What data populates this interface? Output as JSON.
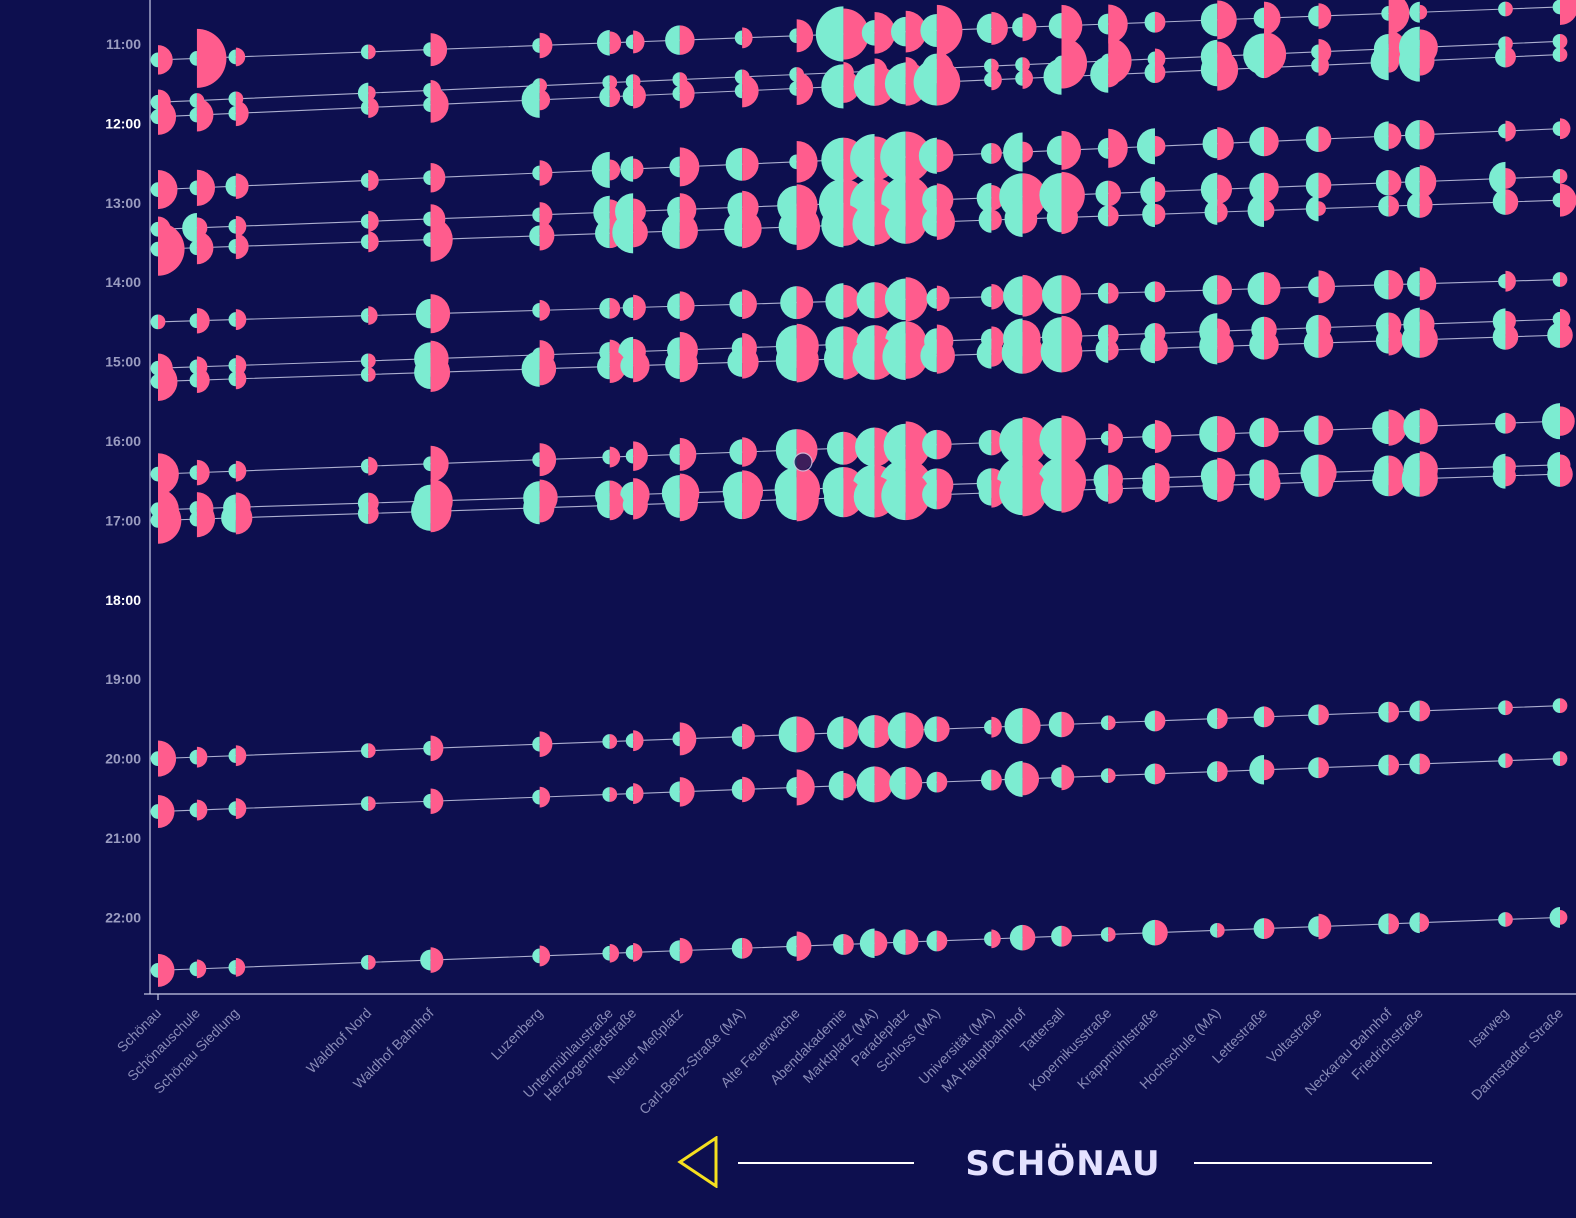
{
  "colors": {
    "background": "#0d0f4f",
    "boarding": "#ff5c8d",
    "alighting": "#7cecd1",
    "line": "#c9cbe6",
    "arrow": "#f5df1f"
  },
  "direction": {
    "destination": "SCHÖNAU",
    "arrow_icon": "triangle-left-icon"
  },
  "chart_data": {
    "type": "scatter",
    "title": "",
    "xlabel": "",
    "ylabel": "",
    "y_axis": {
      "type": "time",
      "ticks": [
        "11:00",
        "12:00",
        "13:00",
        "14:00",
        "15:00",
        "16:00",
        "17:00",
        "18:00",
        "19:00",
        "20:00",
        "21:00",
        "22:00"
      ],
      "major_ticks": [
        "12:00",
        "18:00"
      ],
      "range": [
        "10:30",
        "23:00"
      ]
    },
    "x_axis": {
      "type": "category",
      "stops": [
        {
          "name": "Schönau",
          "km": 0
        },
        {
          "name": "Schönauschule",
          "km": 0.5
        },
        {
          "name": "Schönau Siedlung",
          "km": 1.0
        },
        {
          "name": "Waldhof Nord",
          "km": 2.7
        },
        {
          "name": "Waldhof Bahnhof",
          "km": 3.5
        },
        {
          "name": "Luzenberg",
          "km": 4.9
        },
        {
          "name": "Untermühlaustraße",
          "km": 5.8
        },
        {
          "name": "Herzogenriedstraße",
          "km": 6.1
        },
        {
          "name": "Neuer Meßplatz",
          "km": 6.7
        },
        {
          "name": "Carl-Benz-Straße (MA)",
          "km": 7.5
        },
        {
          "name": "Alte Feuerwache",
          "km": 8.2
        },
        {
          "name": "Abendakademie",
          "km": 8.8
        },
        {
          "name": "Marktplatz (MA)",
          "km": 9.2
        },
        {
          "name": "Paradeplatz",
          "km": 9.6
        },
        {
          "name": "Schloss (MA)",
          "km": 10.0
        },
        {
          "name": "Universität (MA)",
          "km": 10.7
        },
        {
          "name": "MA Hauptbahnhof",
          "km": 11.1
        },
        {
          "name": "Tattersall",
          "km": 11.6
        },
        {
          "name": "Kopernikusstraße",
          "km": 12.2
        },
        {
          "name": "Krappmühlstraße",
          "km": 12.8
        },
        {
          "name": "Hochschule (MA)",
          "km": 13.6
        },
        {
          "name": "Lettestraße",
          "km": 14.2
        },
        {
          "name": "Voltastraße",
          "km": 14.9
        },
        {
          "name": "Neckarau Bahnhof",
          "km": 15.8
        },
        {
          "name": "Friedrichstraße",
          "km": 16.2
        },
        {
          "name": "Isarweg",
          "km": 17.3
        },
        {
          "name": "Darmstadter Straße",
          "km": 18.0
        }
      ]
    },
    "legend": "none",
    "series_note": "Each trip runs toward Schönau; each stop shows passengers boarding and alighting as half-circles sized by count.",
    "trips": [
      {
        "start": "11:12",
        "end": "10:32",
        "boarding": [
          20,
          80,
          8,
          5,
          25,
          15,
          12,
          12,
          20,
          10,
          25,
          60,
          40,
          40,
          60,
          25,
          18,
          40,
          35,
          10,
          35,
          25,
          15,
          40,
          5,
          5,
          30
        ],
        "alighting": [
          5,
          5,
          5,
          5,
          5,
          5,
          15,
          5,
          20,
          5,
          5,
          70,
          15,
          20,
          25,
          20,
          10,
          15,
          10,
          10,
          25,
          10,
          10,
          5,
          10,
          5,
          5
        ]
      },
      {
        "start": "11:44",
        "end": "10:58",
        "boarding": [
          15,
          5,
          5,
          5,
          10,
          5,
          5,
          5,
          5,
          5,
          5,
          10,
          15,
          15,
          25,
          5,
          5,
          60,
          50,
          10,
          20,
          45,
          15,
          30,
          30,
          5,
          5
        ],
        "alighting": [
          5,
          5,
          5,
          10,
          5,
          5,
          5,
          5,
          5,
          5,
          5,
          5,
          5,
          5,
          20,
          5,
          5,
          5,
          5,
          5,
          25,
          40,
          5,
          20,
          40,
          5,
          5
        ]
      },
      {
        "start": "11:55",
        "end": "11:08",
        "boarding": [
          30,
          25,
          15,
          10,
          30,
          10,
          10,
          15,
          20,
          25,
          25,
          25,
          40,
          45,
          50,
          10,
          10,
          10,
          15,
          10,
          40,
          10,
          10,
          10,
          20,
          10,
          5
        ],
        "alighting": [
          5,
          5,
          5,
          5,
          5,
          30,
          10,
          10,
          5,
          5,
          5,
          45,
          40,
          40,
          50,
          5,
          5,
          30,
          30,
          10,
          25,
          10,
          5,
          30,
          40,
          10,
          5
        ]
      },
      {
        "start": "12:50",
        "end": "12:04",
        "boarding": [
          35,
          30,
          15,
          10,
          20,
          15,
          10,
          10,
          35,
          25,
          40,
          45,
          45,
          60,
          25,
          10,
          10,
          35,
          35,
          10,
          25,
          20,
          15,
          15,
          20,
          10,
          10
        ],
        "alighting": [
          5,
          5,
          10,
          5,
          5,
          5,
          30,
          15,
          10,
          25,
          5,
          45,
          55,
          60,
          30,
          10,
          35,
          20,
          10,
          30,
          20,
          20,
          15,
          20,
          20,
          5,
          5
        ]
      },
      {
        "start": "13:20",
        "end": "12:40",
        "boarding": [
          15,
          10,
          10,
          10,
          20,
          15,
          15,
          15,
          25,
          25,
          40,
          55,
          55,
          60,
          25,
          15,
          50,
          50,
          15,
          10,
          20,
          20,
          15,
          15,
          25,
          10,
          5
        ],
        "alighting": [
          5,
          20,
          5,
          5,
          5,
          5,
          25,
          30,
          15,
          20,
          35,
          55,
          55,
          55,
          20,
          20,
          50,
          45,
          15,
          20,
          25,
          20,
          15,
          15,
          20,
          25,
          5
        ]
      },
      {
        "start": "13:35",
        "end": "12:58",
        "boarding": [
          65,
          25,
          15,
          10,
          45,
          20,
          20,
          20,
          30,
          35,
          50,
          40,
          40,
          40,
          30,
          10,
          20,
          25,
          10,
          10,
          10,
          10,
          5,
          10,
          15,
          15,
          25
        ],
        "alighting": [
          5,
          5,
          5,
          5,
          5,
          10,
          20,
          40,
          30,
          30,
          30,
          45,
          45,
          40,
          20,
          15,
          30,
          20,
          10,
          15,
          15,
          25,
          15,
          10,
          15,
          15,
          5
        ]
      },
      {
        "start": "14:30",
        "end": "13:58",
        "boarding": [
          5,
          15,
          10,
          8,
          35,
          10,
          10,
          15,
          20,
          20,
          25,
          25,
          30,
          45,
          15,
          15,
          40,
          35,
          10,
          10,
          20,
          25,
          25,
          20,
          25,
          10,
          5
        ],
        "alighting": [
          5,
          5,
          5,
          5,
          20,
          5,
          10,
          10,
          15,
          15,
          25,
          30,
          30,
          40,
          10,
          10,
          35,
          35,
          10,
          10,
          20,
          25,
          10,
          20,
          15,
          5,
          5
        ]
      },
      {
        "start": "15:05",
        "end": "14:28",
        "boarding": [
          20,
          10,
          10,
          5,
          30,
          20,
          15,
          15,
          30,
          20,
          45,
          30,
          30,
          40,
          25,
          15,
          30,
          40,
          10,
          10,
          15,
          15,
          15,
          15,
          20,
          10,
          10
        ],
        "alighting": [
          5,
          5,
          5,
          5,
          25,
          5,
          10,
          20,
          15,
          10,
          40,
          30,
          30,
          40,
          15,
          10,
          35,
          35,
          10,
          10,
          30,
          15,
          15,
          15,
          25,
          15,
          5
        ]
      },
      {
        "start": "15:15",
        "end": "14:40",
        "boarding": [
          35,
          15,
          10,
          5,
          35,
          25,
          25,
          25,
          30,
          25,
          45,
          40,
          45,
          45,
          30,
          15,
          40,
          40,
          10,
          15,
          25,
          20,
          20,
          20,
          30,
          15,
          15
        ],
        "alighting": [
          5,
          5,
          5,
          5,
          25,
          30,
          15,
          15,
          20,
          20,
          40,
          35,
          45,
          50,
          25,
          20,
          40,
          40,
          15,
          20,
          30,
          20,
          20,
          15,
          30,
          15,
          15
        ]
      },
      {
        "start": "16:25",
        "end": "15:45",
        "boarding": [
          40,
          15,
          10,
          8,
          30,
          25,
          10,
          20,
          25,
          20,
          40,
          25,
          35,
          55,
          20,
          15,
          55,
          55,
          20,
          25,
          30,
          20,
          20,
          30,
          30,
          10,
          20
        ],
        "alighting": [
          5,
          5,
          5,
          5,
          5,
          5,
          5,
          5,
          10,
          15,
          40,
          25,
          35,
          45,
          20,
          15,
          50,
          45,
          5,
          15,
          30,
          20,
          20,
          25,
          25,
          10,
          30
        ]
      },
      {
        "start": "16:52",
        "end": "16:18",
        "boarding": [
          40,
          25,
          20,
          10,
          45,
          30,
          20,
          25,
          35,
          40,
          50,
          40,
          45,
          65,
          25,
          20,
          65,
          55,
          20,
          20,
          30,
          20,
          30,
          20,
          30,
          10,
          10
        ],
        "alighting": [
          5,
          5,
          15,
          10,
          25,
          25,
          20,
          15,
          30,
          35,
          45,
          40,
          45,
          65,
          25,
          20,
          60,
          50,
          20,
          15,
          25,
          20,
          30,
          20,
          25,
          15,
          15
        ]
      },
      {
        "start": "17:00",
        "end": "16:25",
        "boarding": [
          50,
          30,
          25,
          10,
          40,
          20,
          20,
          20,
          30,
          30,
          45,
          35,
          40,
          55,
          20,
          20,
          55,
          45,
          20,
          20,
          25,
          25,
          20,
          25,
          30,
          10,
          15
        ],
        "alighting": [
          5,
          5,
          20,
          10,
          35,
          25,
          15,
          10,
          20,
          30,
          40,
          35,
          40,
          55,
          20,
          15,
          50,
          40,
          15,
          15,
          20,
          20,
          20,
          25,
          30,
          15,
          15
        ]
      },
      {
        "start": "20:00",
        "end": "19:20",
        "boarding": [
          30,
          10,
          10,
          5,
          15,
          15,
          5,
          10,
          25,
          15,
          30,
          20,
          25,
          30,
          15,
          10,
          30,
          15,
          5,
          10,
          10,
          10,
          10,
          10,
          10,
          5,
          5
        ],
        "alighting": [
          5,
          5,
          5,
          5,
          5,
          5,
          5,
          5,
          5,
          10,
          30,
          25,
          25,
          30,
          15,
          5,
          30,
          15,
          5,
          10,
          10,
          10,
          10,
          10,
          10,
          5,
          5
        ]
      },
      {
        "start": "20:40",
        "end": "20:00",
        "boarding": [
          25,
          10,
          10,
          5,
          15,
          10,
          5,
          10,
          20,
          15,
          30,
          15,
          30,
          25,
          10,
          10,
          25,
          15,
          5,
          10,
          10,
          10,
          10,
          10,
          10,
          5,
          5
        ],
        "alighting": [
          5,
          5,
          5,
          5,
          5,
          5,
          5,
          5,
          10,
          10,
          10,
          20,
          30,
          25,
          10,
          10,
          30,
          10,
          5,
          10,
          10,
          20,
          10,
          10,
          10,
          5,
          5
        ]
      },
      {
        "start": "22:40",
        "end": "22:00",
        "boarding": [
          25,
          8,
          8,
          5,
          15,
          10,
          8,
          8,
          15,
          10,
          20,
          10,
          15,
          15,
          10,
          8,
          15,
          10,
          5,
          15,
          5,
          10,
          15,
          10,
          8,
          5,
          5
        ],
        "alighting": [
          5,
          5,
          5,
          5,
          10,
          5,
          5,
          5,
          10,
          10,
          10,
          10,
          20,
          15,
          10,
          5,
          15,
          10,
          5,
          15,
          5,
          10,
          10,
          10,
          10,
          5,
          10
        ]
      }
    ]
  }
}
